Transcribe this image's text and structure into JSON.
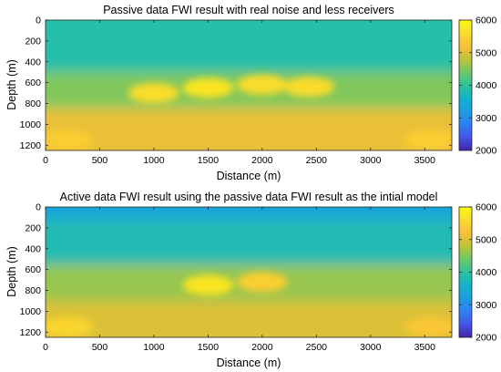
{
  "colormap": [
    "#3e26a8",
    "#4354e8",
    "#2f7ff5",
    "#1b9ee0",
    "#12b4c8",
    "#2ec29e",
    "#6cc967",
    "#bfc237",
    "#f8bf3a",
    "#fadc2b",
    "#f9fb0e"
  ],
  "chart_data": [
    {
      "type": "heatmap",
      "title": "Passive data FWI result with real noise and less receivers",
      "xlabel": "Distance (m)",
      "ylabel": "Depth (m)",
      "xlim": [
        0,
        3750
      ],
      "ylim": [
        0,
        1250
      ],
      "y_reversed": true,
      "xticks": [
        "0",
        "500",
        "1000",
        "1500",
        "2000",
        "2500",
        "3000",
        "3500"
      ],
      "yticks": [
        "0",
        "200",
        "400",
        "600",
        "800",
        "1000",
        "1200"
      ],
      "colorbar": {
        "range": [
          2000,
          6000
        ],
        "ticks": [
          "6000",
          "5000",
          "4000",
          "3000",
          "2000"
        ]
      },
      "velocity_zones": [
        {
          "depth_range": [
            0,
            500
          ],
          "velocity": 3900
        },
        {
          "depth_range": [
            500,
            850
          ],
          "velocity": 4500
        },
        {
          "depth_range": [
            850,
            1250
          ],
          "velocity": 5100
        }
      ],
      "anomalies": [
        {
          "x": 1000,
          "depth": 700,
          "velocity": 5600
        },
        {
          "x": 1500,
          "depth": 650,
          "velocity": 5700
        },
        {
          "x": 2000,
          "depth": 620,
          "velocity": 5600
        },
        {
          "x": 2430,
          "depth": 640,
          "velocity": 5600
        },
        {
          "x": 200,
          "depth": 1150,
          "velocity": 5400
        },
        {
          "x": 3550,
          "depth": 1150,
          "velocity": 5400
        }
      ]
    },
    {
      "type": "heatmap",
      "title": "Active data FWI result using the passive data FWI result as the intial model",
      "xlabel": "Distance (m)",
      "ylabel": "Depth (m)",
      "xlim": [
        0,
        3750
      ],
      "ylim": [
        0,
        1250
      ],
      "y_reversed": true,
      "xticks": [
        "0",
        "500",
        "1000",
        "1500",
        "2000",
        "2500",
        "3000",
        "3500"
      ],
      "yticks": [
        "0",
        "200",
        "400",
        "600",
        "800",
        "1000",
        "1200"
      ],
      "colorbar": {
        "range": [
          2000,
          6000
        ],
        "ticks": [
          "6000",
          "5000",
          "4000",
          "3000",
          "2000"
        ]
      },
      "velocity_zones": [
        {
          "depth_range": [
            0,
            120
          ],
          "velocity": 3300
        },
        {
          "depth_range": [
            120,
            550
          ],
          "velocity": 3800
        },
        {
          "depth_range": [
            550,
            900
          ],
          "velocity": 4600
        },
        {
          "depth_range": [
            900,
            1250
          ],
          "velocity": 5000
        }
      ],
      "anomalies": [
        {
          "x": 1500,
          "depth": 750,
          "velocity": 5700
        },
        {
          "x": 2000,
          "depth": 720,
          "velocity": 5400
        },
        {
          "x": 200,
          "depth": 1150,
          "velocity": 5500
        },
        {
          "x": 3550,
          "depth": 1150,
          "velocity": 5300
        }
      ]
    }
  ]
}
